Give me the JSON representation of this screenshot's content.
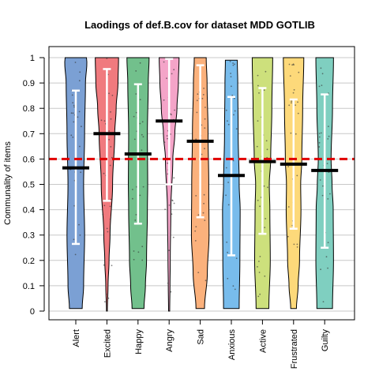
{
  "chart_data": {
    "type": "violin",
    "title": "Laodings of def.B.cov for dataset MDD GOTLIB",
    "xlabel": "",
    "ylabel": "Communality of items",
    "ylim": [
      0,
      1
    ],
    "yticks": [
      "0",
      "0.1",
      "0.2",
      "0.3",
      "0.4",
      "0.5",
      "0.6",
      "0.7",
      "0.8",
      "0.9",
      "1"
    ],
    "reference_line": {
      "value": 0.6,
      "style": "dashed",
      "color": "#e00000"
    },
    "grid": true,
    "categories": [
      "Alert",
      "Excited",
      "Happy",
      "Angry",
      "Sad",
      "Anxious",
      "Active",
      "Frustrated",
      "Guilty"
    ],
    "colors": [
      "#7ba0d4",
      "#f07a7e",
      "#72c08c",
      "#f4a4c8",
      "#fbb17c",
      "#78bcec",
      "#cde07c",
      "#fdd97a",
      "#7fcfc0"
    ],
    "means": [
      0.565,
      0.7,
      0.62,
      0.75,
      0.67,
      0.535,
      0.59,
      0.58,
      0.555
    ],
    "error_bars": [
      {
        "low": 0.265,
        "high": 0.87
      },
      {
        "low": 0.435,
        "high": 0.955
      },
      {
        "low": 0.345,
        "high": 0.895
      },
      {
        "low": 0.5,
        "high": 0.995
      },
      {
        "low": 0.37,
        "high": 0.97
      },
      {
        "low": 0.22,
        "high": 0.845
      },
      {
        "low": 0.305,
        "high": 0.88
      },
      {
        "low": 0.325,
        "high": 0.835
      },
      {
        "low": 0.25,
        "high": 0.855
      }
    ],
    "ranges": [
      {
        "min": 0.01,
        "max": 1.0
      },
      {
        "min": 0.0,
        "max": 1.0
      },
      {
        "min": 0.01,
        "max": 1.0
      },
      {
        "min": 0.0,
        "max": 1.0
      },
      {
        "min": 0.01,
        "max": 1.0
      },
      {
        "min": 0.01,
        "max": 0.99
      },
      {
        "min": 0.01,
        "max": 1.0
      },
      {
        "min": 0.01,
        "max": 1.0
      },
      {
        "min": 0.01,
        "max": 1.0
      }
    ],
    "density_profiles": [
      [
        [
          0.01,
          0.45
        ],
        [
          0.1,
          0.55
        ],
        [
          0.3,
          0.62
        ],
        [
          0.5,
          0.55
        ],
        [
          0.7,
          0.62
        ],
        [
          0.9,
          0.68
        ],
        [
          0.98,
          0.78
        ],
        [
          1.0,
          0.75
        ]
      ],
      [
        [
          0.0,
          0.03
        ],
        [
          0.1,
          0.08
        ],
        [
          0.2,
          0.15
        ],
        [
          0.3,
          0.22
        ],
        [
          0.5,
          0.4
        ],
        [
          0.7,
          0.55
        ],
        [
          0.8,
          0.65
        ],
        [
          0.9,
          0.78
        ],
        [
          1.0,
          0.82
        ]
      ],
      [
        [
          0.01,
          0.42
        ],
        [
          0.1,
          0.52
        ],
        [
          0.2,
          0.6
        ],
        [
          0.4,
          0.66
        ],
        [
          0.5,
          0.68
        ],
        [
          0.7,
          0.66
        ],
        [
          0.9,
          0.72
        ],
        [
          1.0,
          0.78
        ]
      ],
      [
        [
          0.0,
          0.04
        ],
        [
          0.1,
          0.06
        ],
        [
          0.2,
          0.08
        ],
        [
          0.4,
          0.12
        ],
        [
          0.6,
          0.26
        ],
        [
          0.7,
          0.4
        ],
        [
          0.8,
          0.55
        ],
        [
          0.9,
          0.65
        ],
        [
          1.0,
          0.7
        ]
      ],
      [
        [
          0.01,
          0.3
        ],
        [
          0.15,
          0.5
        ],
        [
          0.3,
          0.62
        ],
        [
          0.5,
          0.6
        ],
        [
          0.7,
          0.55
        ],
        [
          0.9,
          0.48
        ],
        [
          1.0,
          0.42
        ]
      ],
      [
        [
          0.01,
          0.55
        ],
        [
          0.2,
          0.6
        ],
        [
          0.4,
          0.62
        ],
        [
          0.5,
          0.55
        ],
        [
          0.7,
          0.48
        ],
        [
          0.9,
          0.45
        ],
        [
          0.99,
          0.42
        ]
      ],
      [
        [
          0.01,
          0.45
        ],
        [
          0.2,
          0.55
        ],
        [
          0.4,
          0.52
        ],
        [
          0.5,
          0.48
        ],
        [
          0.6,
          0.58
        ],
        [
          0.8,
          0.66
        ],
        [
          1.0,
          0.72
        ]
      ],
      [
        [
          0.01,
          0.2
        ],
        [
          0.1,
          0.32
        ],
        [
          0.2,
          0.42
        ],
        [
          0.4,
          0.52
        ],
        [
          0.5,
          0.5
        ],
        [
          0.6,
          0.58
        ],
        [
          0.8,
          0.64
        ],
        [
          1.0,
          0.72
        ]
      ],
      [
        [
          0.01,
          0.55
        ],
        [
          0.2,
          0.62
        ],
        [
          0.4,
          0.6
        ],
        [
          0.5,
          0.52
        ],
        [
          0.6,
          0.45
        ],
        [
          0.8,
          0.55
        ],
        [
          1.0,
          0.62
        ]
      ]
    ]
  }
}
